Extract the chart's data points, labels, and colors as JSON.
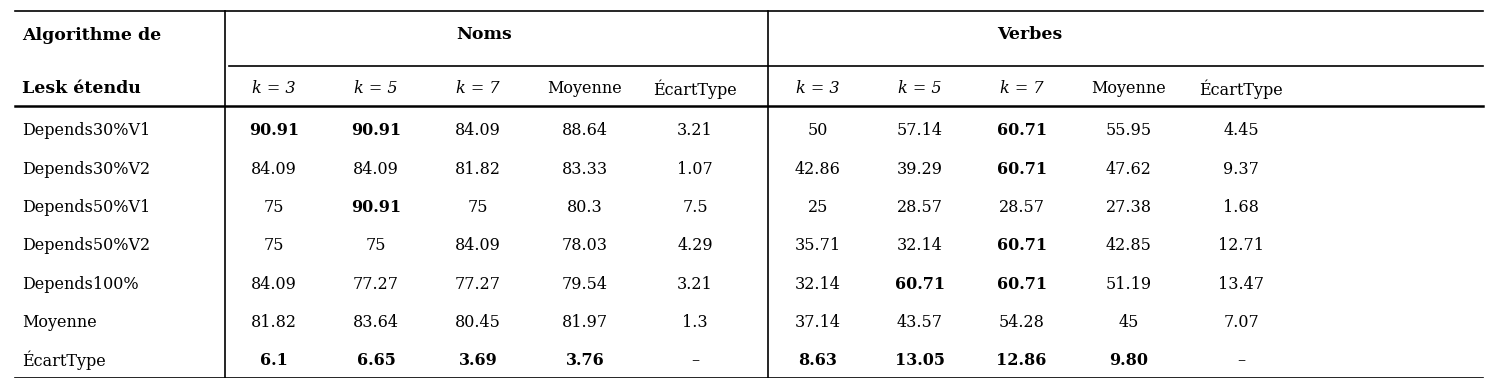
{
  "col1_header": [
    "Algorithme de",
    "Lesk étendu"
  ],
  "noms_header": "Noms",
  "verbes_header": "Verbes",
  "sub_headers": [
    "k = 3",
    "k = 5",
    "k = 7",
    "Moyenne",
    "ÉcartType"
  ],
  "row_labels": [
    "Depends30%V1",
    "Depends30%V2",
    "Depends50%V1",
    "Depends50%V2",
    "Depends100%",
    "Moyenne",
    "ÉcartType"
  ],
  "noms_data": [
    [
      "90.91",
      "90.91",
      "84.09",
      "88.64",
      "3.21"
    ],
    [
      "84.09",
      "84.09",
      "81.82",
      "83.33",
      "1.07"
    ],
    [
      "75",
      "90.91",
      "75",
      "80.3",
      "7.5"
    ],
    [
      "75",
      "75",
      "84.09",
      "78.03",
      "4.29"
    ],
    [
      "84.09",
      "77.27",
      "77.27",
      "79.54",
      "3.21"
    ],
    [
      "81.82",
      "83.64",
      "80.45",
      "81.97",
      "1.3"
    ],
    [
      "6.1",
      "6.65",
      "3.69",
      "3.76",
      "–"
    ]
  ],
  "verbes_data": [
    [
      "50",
      "57.14",
      "60.71",
      "55.95",
      "4.45"
    ],
    [
      "42.86",
      "39.29",
      "60.71",
      "47.62",
      "9.37"
    ],
    [
      "25",
      "28.57",
      "28.57",
      "27.38",
      "1.68"
    ],
    [
      "35.71",
      "32.14",
      "60.71",
      "42.85",
      "12.71"
    ],
    [
      "32.14",
      "60.71",
      "60.71",
      "51.19",
      "13.47"
    ],
    [
      "37.14",
      "43.57",
      "54.28",
      "45",
      "7.07"
    ],
    [
      "8.63",
      "13.05",
      "12.86",
      "9.80",
      "–"
    ]
  ],
  "noms_bold": [
    [
      true,
      true,
      false,
      false,
      false
    ],
    [
      false,
      false,
      false,
      false,
      false
    ],
    [
      false,
      true,
      false,
      false,
      false
    ],
    [
      false,
      false,
      false,
      false,
      false
    ],
    [
      false,
      false,
      false,
      false,
      false
    ],
    [
      false,
      false,
      false,
      false,
      false
    ],
    [
      true,
      true,
      true,
      true,
      false
    ]
  ],
  "verbes_bold": [
    [
      false,
      false,
      true,
      false,
      false
    ],
    [
      false,
      false,
      true,
      false,
      false
    ],
    [
      false,
      false,
      false,
      false,
      false
    ],
    [
      false,
      false,
      true,
      false,
      false
    ],
    [
      false,
      true,
      true,
      false,
      false
    ],
    [
      false,
      false,
      false,
      false,
      false
    ],
    [
      true,
      true,
      true,
      true,
      false
    ]
  ],
  "bg_color": "#ffffff",
  "font_size": 11.5,
  "header_font_size": 12.5
}
